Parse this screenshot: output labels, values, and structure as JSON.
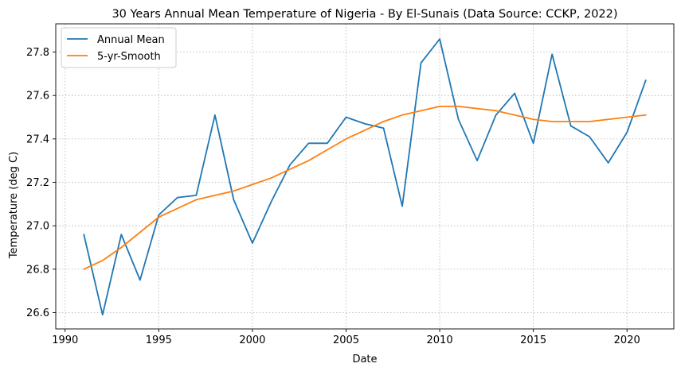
{
  "chart_data": {
    "type": "line",
    "title": "30 Years Annual Mean Temperature of Nigeria - By El-Sunais (Data Source: CCKP, 2022)",
    "xlabel": "Date",
    "ylabel": "Temperature (deg C)",
    "x": [
      1991,
      1992,
      1993,
      1994,
      1995,
      1996,
      1997,
      1998,
      1999,
      2000,
      2001,
      2002,
      2003,
      2004,
      2005,
      2006,
      2007,
      2008,
      2009,
      2010,
      2011,
      2012,
      2013,
      2014,
      2015,
      2016,
      2017,
      2018,
      2019,
      2020,
      2021
    ],
    "series": [
      {
        "name": "Annual Mean",
        "color": "#1f77b4",
        "values": [
          26.96,
          26.59,
          26.96,
          26.75,
          27.05,
          27.13,
          27.14,
          27.51,
          27.12,
          26.92,
          27.11,
          27.28,
          27.38,
          27.38,
          27.5,
          27.47,
          27.45,
          27.09,
          27.75,
          27.86,
          27.49,
          27.3,
          27.51,
          27.61,
          27.38,
          27.79,
          27.46,
          27.41,
          27.29,
          27.43,
          27.67
        ]
      },
      {
        "name": "5-yr-Smooth",
        "color": "#ff7f0e",
        "values": [
          26.8,
          26.84,
          26.9,
          26.97,
          27.04,
          27.08,
          27.12,
          27.14,
          27.16,
          27.19,
          27.22,
          27.26,
          27.3,
          27.35,
          27.4,
          27.44,
          27.48,
          27.51,
          27.53,
          27.55,
          27.55,
          27.54,
          27.53,
          27.51,
          27.49,
          27.48,
          27.48,
          27.48,
          27.49,
          27.5,
          27.51
        ]
      }
    ],
    "xlim": [
      1989.5,
      2022.5
    ],
    "ylim": [
      26.525,
      27.93
    ],
    "xticks": [
      1990,
      1995,
      2000,
      2005,
      2010,
      2015,
      2020
    ],
    "yticks": [
      26.6,
      26.8,
      27.0,
      27.2,
      27.4,
      27.6,
      27.8
    ],
    "ytick_labels": [
      "26.6",
      "26.8",
      "27.0",
      "27.2",
      "27.4",
      "27.6",
      "27.8"
    ],
    "grid": true,
    "legend_position": "top-left"
  }
}
